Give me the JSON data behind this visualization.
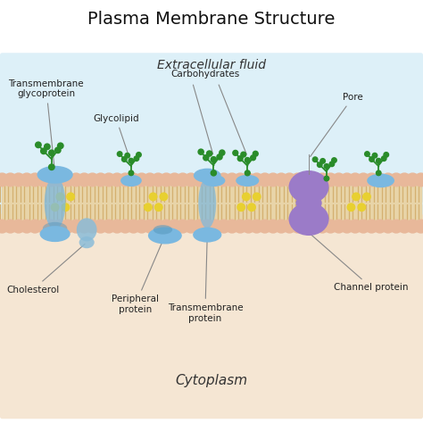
{
  "title": "Plasma Membrane Structure",
  "extracellular_label": "Extracellular fluid",
  "cytoplasm_label": "Cytoplasm",
  "bg_top_color": "#ddf0f8",
  "bg_bottom_color": "#f5e6d3",
  "bg_white": "#ffffff",
  "phospholipid_head_color": "#e8b89a",
  "lipid_tail_color": "#d4b070",
  "protein_blue_color": "#7ab8e0",
  "protein_blue_dark": "#5a9abf",
  "protein_purple_color": "#9b7bc8",
  "protein_purple_dark": "#7a5aa8",
  "carb_color": "#2a8c2a",
  "yellow_dot_color": "#e8d030",
  "label_color": "#222222",
  "line_color": "#888888",
  "title_fontsize": 14,
  "label_fontsize": 7.5
}
